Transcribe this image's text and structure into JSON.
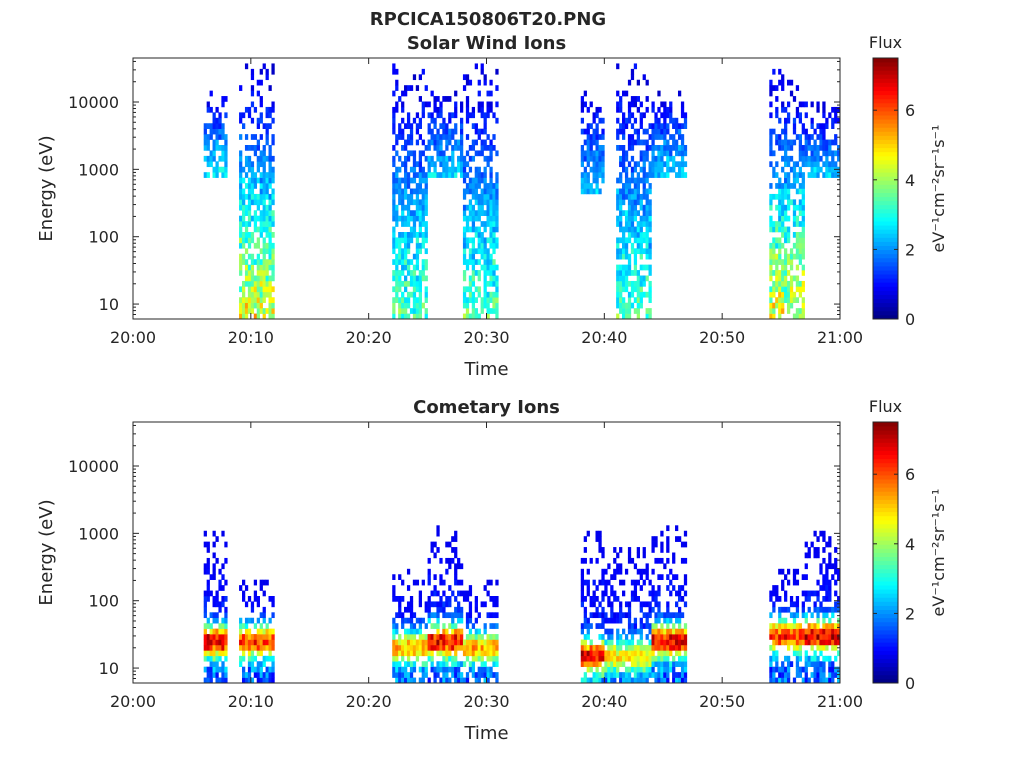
{
  "figure": {
    "title": "RPCICA150806T20.PNG",
    "colormap": "jet",
    "background": "#ffffff"
  },
  "chart_data": [
    {
      "type": "heatmap",
      "title": "Solar Wind Ions",
      "xlabel": "Time",
      "ylabel": "Energy (eV)",
      "x_ticks": [
        "20:00",
        "20:10",
        "20:20",
        "20:30",
        "20:40",
        "20:50",
        "21:00"
      ],
      "xlim": [
        "20:00",
        "21:00"
      ],
      "y_scale": "log",
      "ylim": [
        6,
        45000
      ],
      "y_ticks": [
        "10",
        "100",
        "1000",
        "10000"
      ],
      "colorbar": {
        "label": "Flux",
        "units": "eV⁻¹cm⁻²sr⁻¹s⁻¹",
        "range": [
          0,
          7.5
        ],
        "ticks": [
          "0",
          "2",
          "4",
          "6"
        ]
      },
      "bursts": [
        {
          "start": "20:06",
          "end": "20:08",
          "e_min": 700,
          "e_max": 15000,
          "peak_flux": 2.5
        },
        {
          "start": "20:09",
          "end": "20:12",
          "e_min": 6,
          "e_max": 35000,
          "peak_flux": 4.5
        },
        {
          "start": "20:22",
          "end": "20:25",
          "e_min": 6,
          "e_max": 35000,
          "peak_flux": 3.2
        },
        {
          "start": "20:25",
          "end": "20:28",
          "e_min": 800,
          "e_max": 15000,
          "peak_flux": 2.0
        },
        {
          "start": "20:28",
          "end": "20:31",
          "e_min": 6,
          "e_max": 35000,
          "peak_flux": 3.2
        },
        {
          "start": "20:38",
          "end": "20:40",
          "e_min": 400,
          "e_max": 15000,
          "peak_flux": 2.0
        },
        {
          "start": "20:41",
          "end": "20:44",
          "e_min": 6,
          "e_max": 35000,
          "peak_flux": 3.2
        },
        {
          "start": "20:44",
          "end": "20:47",
          "e_min": 800,
          "e_max": 15000,
          "peak_flux": 2.0
        },
        {
          "start": "20:54",
          "end": "20:57",
          "e_min": 6,
          "e_max": 30000,
          "peak_flux": 4.5
        },
        {
          "start": "20:57",
          "end": "21:00",
          "e_min": 700,
          "e_max": 10000,
          "peak_flux": 2.0
        }
      ]
    },
    {
      "type": "heatmap",
      "title": "Cometary Ions",
      "xlabel": "Time",
      "ylabel": "Energy (eV)",
      "x_ticks": [
        "20:00",
        "20:10",
        "20:20",
        "20:30",
        "20:40",
        "20:50",
        "21:00"
      ],
      "xlim": [
        "20:00",
        "21:00"
      ],
      "y_scale": "log",
      "ylim": [
        6,
        45000
      ],
      "y_ticks": [
        "10",
        "100",
        "1000",
        "10000"
      ],
      "colorbar": {
        "label": "Flux",
        "units": "eV⁻¹cm⁻²sr⁻¹s⁻¹",
        "range": [
          0,
          7.5
        ],
        "ticks": [
          "0",
          "2",
          "4",
          "6"
        ]
      },
      "bursts": [
        {
          "start": "20:06",
          "end": "20:08",
          "e_min": 6,
          "e_max": 1100,
          "peak_flux": 7.0,
          "peak_energy": 25
        },
        {
          "start": "20:09",
          "end": "20:12",
          "e_min": 6,
          "e_max": 200,
          "peak_flux": 6.5,
          "peak_energy": 25
        },
        {
          "start": "20:22",
          "end": "20:25",
          "e_min": 6,
          "e_max": 300,
          "peak_flux": 5.5,
          "peak_energy": 20
        },
        {
          "start": "20:25",
          "end": "20:28",
          "e_min": 6,
          "e_max": 1300,
          "peak_flux": 7.0,
          "peak_energy": 25
        },
        {
          "start": "20:28",
          "end": "20:31",
          "e_min": 6,
          "e_max": 200,
          "peak_flux": 5.5,
          "peak_energy": 20
        },
        {
          "start": "20:38",
          "end": "20:40",
          "e_min": 6,
          "e_max": 1000,
          "peak_flux": 7.0,
          "peak_energy": 15
        },
        {
          "start": "20:40",
          "end": "20:44",
          "e_min": 6,
          "e_max": 600,
          "peak_flux": 5.0,
          "peak_energy": 15
        },
        {
          "start": "20:44",
          "end": "20:47",
          "e_min": 6,
          "e_max": 1200,
          "peak_flux": 7.0,
          "peak_energy": 25
        },
        {
          "start": "20:54",
          "end": "20:57",
          "e_min": 6,
          "e_max": 300,
          "peak_flux": 6.5,
          "peak_energy": 30
        },
        {
          "start": "20:57",
          "end": "21:00",
          "e_min": 6,
          "e_max": 1100,
          "peak_flux": 7.2,
          "peak_energy": 30
        }
      ]
    }
  ]
}
